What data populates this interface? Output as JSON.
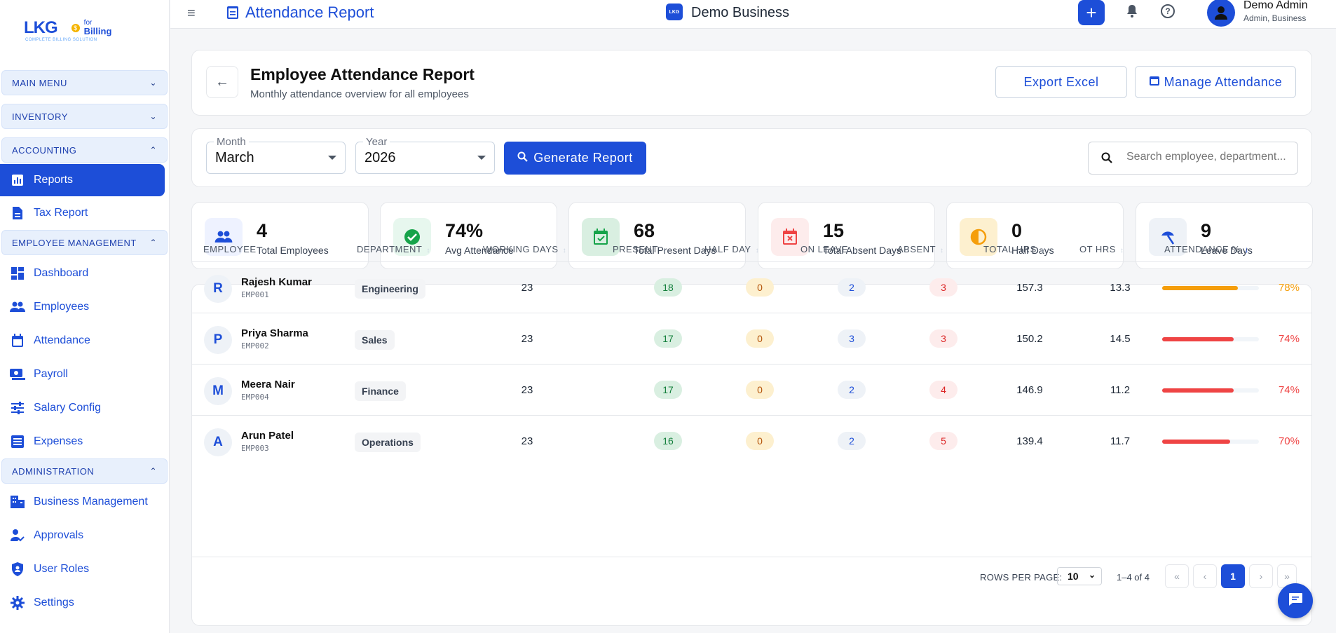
{
  "logo": {
    "brand": "LKG",
    "for": "for",
    "product": "Billing",
    "tagline": "COMPLETE BILLING SOLUTION"
  },
  "sidebar": {
    "main_menu": "MAIN MENU",
    "inventory": "INVENTORY",
    "accounting": "ACCOUNTING",
    "reports": "Reports",
    "tax_report": "Tax Report",
    "employee_management": "EMPLOYEE MANAGEMENT",
    "dashboard": "Dashboard",
    "employees": "Employees",
    "attendance": "Attendance",
    "payroll": "Payroll",
    "salary_config": "Salary Config",
    "expenses": "Expenses",
    "administration": "ADMINISTRATION",
    "business_management": "Business Management",
    "approvals": "Approvals",
    "user_roles": "User Roles",
    "settings": "Settings"
  },
  "topbar": {
    "title": "Attendance Report",
    "business_badge": "LKG",
    "business": "Demo Business",
    "user_name": "Demo Admin",
    "user_role": "Admin, Business"
  },
  "header": {
    "title": "Employee Attendance Report",
    "subtitle": "Monthly attendance overview for all employees",
    "export_label": "Export Excel",
    "manage_label": "Manage Attendance"
  },
  "filters": {
    "month_label": "Month",
    "month_value": "March",
    "year_label": "Year",
    "year_value": "2026",
    "generate_label": "Generate Report",
    "search_placeholder": "Search employee, department..."
  },
  "stats": [
    {
      "value": "4",
      "label": "Total Employees",
      "icon": "people-icon"
    },
    {
      "value": "74%",
      "label": "Avg Attendance",
      "icon": "check-circle-icon"
    },
    {
      "value": "68",
      "label": "Total Present Days",
      "icon": "calendar-check-icon"
    },
    {
      "value": "15",
      "label": "Total Absent Days",
      "icon": "calendar-x-icon"
    },
    {
      "value": "0",
      "label": "Half Days",
      "icon": "half-circle-icon"
    },
    {
      "value": "9",
      "label": "Leave Days",
      "icon": "beach-umbrella-icon"
    }
  ],
  "table": {
    "headers": [
      "EMPLOYEE",
      "DEPARTMENT",
      "WORKING DAYS",
      "PRESENT",
      "HALF DAY",
      "ON LEAVE",
      "ABSENT",
      "TOTAL HRS",
      "OT HRS",
      "ATTENDANCE %"
    ],
    "rows": [
      {
        "initial": "R",
        "name": "Rajesh Kumar",
        "id": "EMP001",
        "department": "Engineering",
        "working_days": "23",
        "present": "18",
        "half_day": "0",
        "on_leave": "2",
        "absent": "3",
        "total_hrs": "157.3",
        "ot_hrs": "13.3",
        "attendance": "78%",
        "attendance_value": 78
      },
      {
        "initial": "P",
        "name": "Priya Sharma",
        "id": "EMP002",
        "department": "Sales",
        "working_days": "23",
        "present": "17",
        "half_day": "0",
        "on_leave": "3",
        "absent": "3",
        "total_hrs": "150.2",
        "ot_hrs": "14.5",
        "attendance": "74%",
        "attendance_value": 74
      },
      {
        "initial": "M",
        "name": "Meera Nair",
        "id": "EMP004",
        "department": "Finance",
        "working_days": "23",
        "present": "17",
        "half_day": "0",
        "on_leave": "2",
        "absent": "4",
        "total_hrs": "146.9",
        "ot_hrs": "11.2",
        "attendance": "74%",
        "attendance_value": 74
      },
      {
        "initial": "A",
        "name": "Arun Patel",
        "id": "EMP003",
        "department": "Operations",
        "working_days": "23",
        "present": "16",
        "half_day": "0",
        "on_leave": "2",
        "absent": "5",
        "total_hrs": "139.4",
        "ot_hrs": "11.7",
        "attendance": "70%",
        "attendance_value": 70
      }
    ]
  },
  "pagination": {
    "rows_label": "ROWS PER PAGE:",
    "rows_value": "10",
    "range": "1–4 of 4",
    "current_page": "1"
  },
  "colors": {
    "accent": "#1d4ed8",
    "warning": "#f59e0b",
    "danger": "#ef4444",
    "success": "#16a34a"
  }
}
